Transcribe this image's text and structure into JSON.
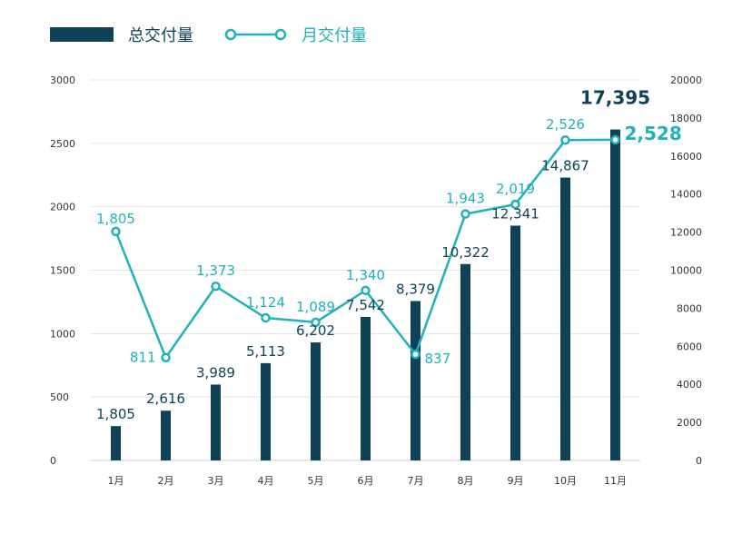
{
  "chart_data": {
    "type": "bar",
    "categories": [
      "1月",
      "2月",
      "3月",
      "4月",
      "5月",
      "6月",
      "7月",
      "8月",
      "9月",
      "10月",
      "11月"
    ],
    "series": [
      {
        "name": "总交付量",
        "type": "bar",
        "axis": "right",
        "values": [
          1805,
          2616,
          3989,
          5113,
          6202,
          7542,
          8379,
          10322,
          12341,
          14867,
          17395
        ],
        "labels": [
          "1,805",
          "2,616",
          "3,989",
          "5,113",
          "6,202",
          "7,542",
          "8,379",
          "10,322",
          "12,341",
          "14,867",
          "17,395"
        ]
      },
      {
        "name": "月交付量",
        "type": "line",
        "axis": "left",
        "values": [
          1805,
          811,
          1373,
          1124,
          1089,
          1340,
          837,
          1943,
          2019,
          2526,
          2528
        ],
        "labels": [
          "1,805",
          "811",
          "1,373",
          "1,124",
          "1,089",
          "1,340",
          "837",
          "1,943",
          "2,019",
          "2,526",
          "2,528"
        ]
      }
    ],
    "left_axis": {
      "ylim": [
        0,
        3000
      ],
      "ticks": [
        "0",
        "500",
        "1000",
        "1500",
        "2000",
        "2500",
        "3000"
      ]
    },
    "right_axis": {
      "ylim": [
        0,
        20000
      ],
      "ticks": [
        "0",
        "2000",
        "4000",
        "6000",
        "8000",
        "10000",
        "12000",
        "14000",
        "16000",
        "18000",
        "20000"
      ]
    },
    "grid": true,
    "legend": "top-left",
    "title": "",
    "xlabel": "",
    "ylabel": "",
    "colors": {
      "bar": "#0f4257",
      "line": "#20b2ba",
      "grid": "#e3e3e3"
    }
  }
}
